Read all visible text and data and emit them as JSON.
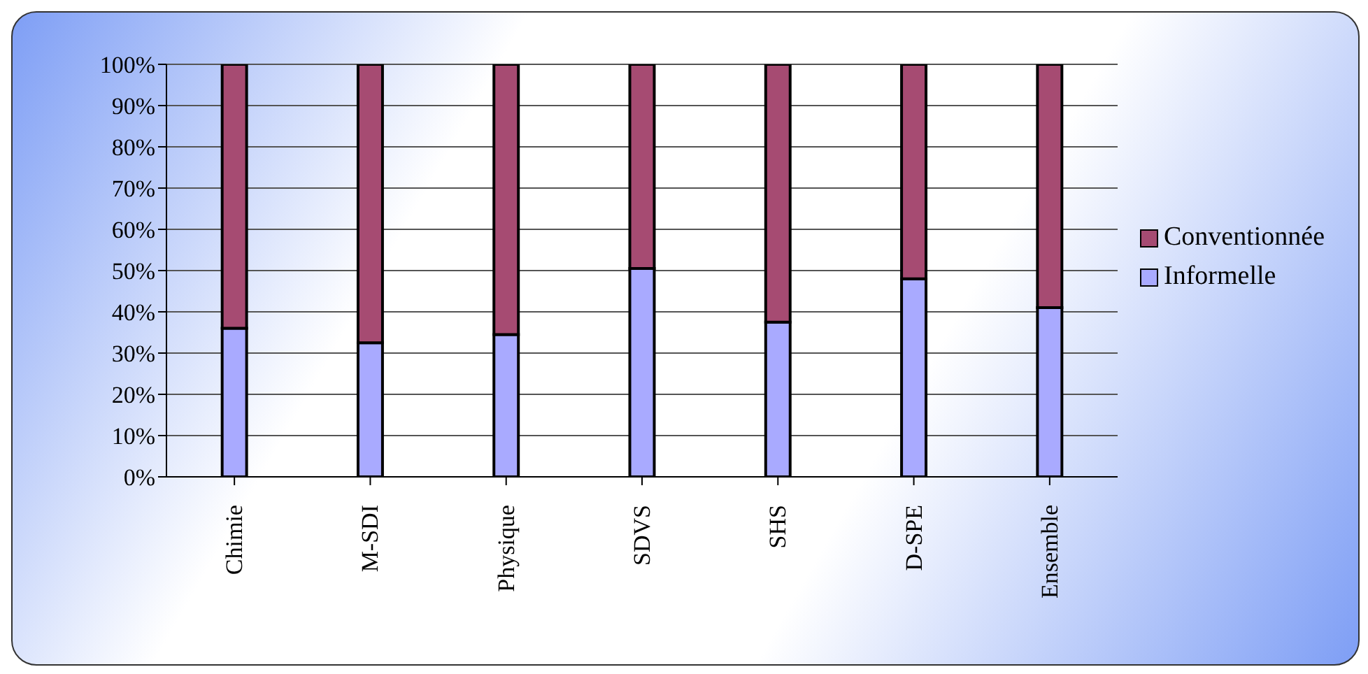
{
  "chart_data": {
    "type": "bar",
    "stacked": true,
    "categories": [
      "Chimie",
      "M-SDI",
      "Physique",
      "SDVS",
      "SHS",
      "D-SPE",
      "Ensemble"
    ],
    "series": [
      {
        "name": "Informelle",
        "color": "#a9aaff",
        "values": [
          36,
          32.5,
          34.5,
          50.5,
          37.5,
          48,
          41
        ]
      },
      {
        "name": "Conventionnée",
        "color": "#a64b72",
        "values": [
          64,
          67.5,
          65.5,
          49.5,
          62.5,
          52,
          59
        ]
      }
    ],
    "ylim": [
      0,
      100
    ],
    "yticks": [
      {
        "value": 0,
        "label": "0%"
      },
      {
        "value": 10,
        "label": "10%"
      },
      {
        "value": 20,
        "label": "20%"
      },
      {
        "value": 30,
        "label": "30%"
      },
      {
        "value": 40,
        "label": "40%"
      },
      {
        "value": 50,
        "label": "50%"
      },
      {
        "value": 60,
        "label": "60%"
      },
      {
        "value": 70,
        "label": "70%"
      },
      {
        "value": 80,
        "label": "80%"
      },
      {
        "value": 90,
        "label": "90%"
      },
      {
        "value": 100,
        "label": "100%"
      }
    ],
    "grid": "y",
    "legend": "right"
  }
}
